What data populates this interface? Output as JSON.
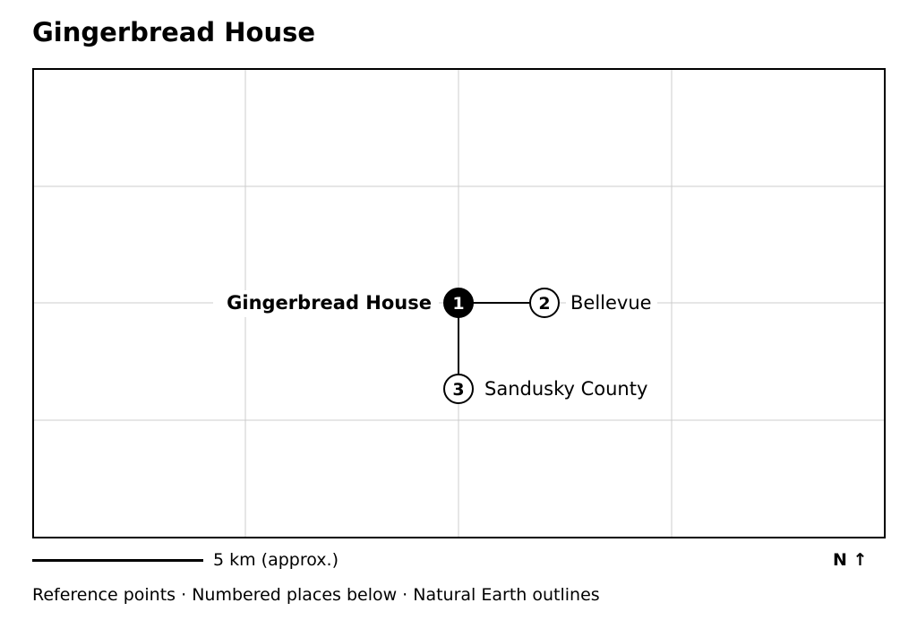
{
  "title": "Gingerbread House",
  "places": [
    {
      "number": "1",
      "name": "Gingerbread House",
      "primary": true
    },
    {
      "number": "2",
      "name": "Bellevue",
      "primary": false
    },
    {
      "number": "3",
      "name": "Sandusky County",
      "primary": false
    }
  ],
  "scale": {
    "label": "5 km (approx.)"
  },
  "north": {
    "label": "N ↑"
  },
  "footer": "Reference points · Numbered places below · Natural Earth outlines",
  "colors": {
    "frame": "#000000",
    "grid": "#cccccc",
    "primary_marker": "#000000",
    "secondary_marker": "#ffffff"
  }
}
